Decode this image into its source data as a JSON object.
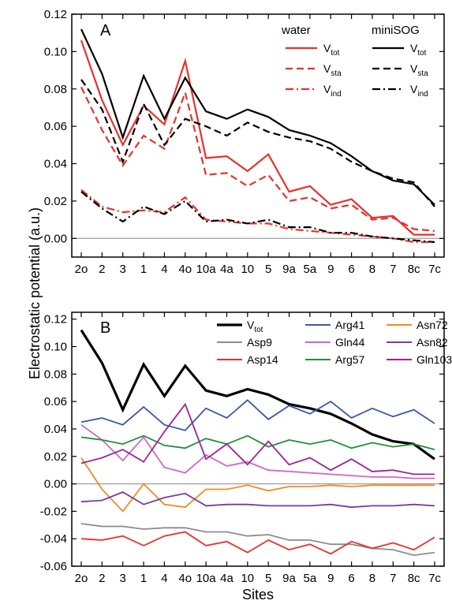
{
  "figure": {
    "ylabel": "Electrostatic potential (a.u.)",
    "xlabel": "Sites",
    "categories": [
      "2o",
      "2",
      "3",
      "1",
      "4",
      "4o",
      "10a",
      "4a",
      "10",
      "5",
      "9a",
      "5a",
      "9",
      "6",
      "8",
      "7",
      "8c",
      "7c"
    ]
  },
  "chart_data": [
    {
      "type": "line",
      "panel": "A",
      "ylim": [
        -0.01,
        0.12
      ],
      "yticks": [
        0.0,
        0.02,
        0.04,
        0.06,
        0.08,
        0.1,
        0.12
      ],
      "ytick_labels": [
        "0.00",
        "0.02",
        "0.04",
        "0.06",
        "0.08",
        "0.10",
        "0.12"
      ],
      "zero_line": true,
      "legend": {
        "groups": [
          {
            "title": "water",
            "color": "#e8312b"
          },
          {
            "title": "miniSOG",
            "color": "#000000"
          }
        ],
        "entries": [
          {
            "base": "V",
            "sub": "tot",
            "dash": "solid"
          },
          {
            "base": "V",
            "sub": "sta",
            "dash": "dash"
          },
          {
            "base": "V",
            "sub": "ind",
            "dash": "dashdot"
          }
        ]
      },
      "series": [
        {
          "key": "water_tot",
          "color": "#e8312b",
          "dash": "solid",
          "width": 2.2,
          "values": [
            0.106,
            0.074,
            0.05,
            0.071,
            0.061,
            0.095,
            0.043,
            0.044,
            0.036,
            0.045,
            0.025,
            0.028,
            0.018,
            0.021,
            0.011,
            0.012,
            0.002,
            0.002
          ]
        },
        {
          "key": "water_sta",
          "color": "#e8312b",
          "dash": "dash",
          "width": 2.2,
          "values": [
            0.081,
            0.058,
            0.039,
            0.055,
            0.048,
            0.078,
            0.034,
            0.035,
            0.028,
            0.034,
            0.02,
            0.022,
            0.016,
            0.018,
            0.01,
            0.011,
            0.005,
            0.004
          ]
        },
        {
          "key": "water_ind",
          "color": "#e8312b",
          "dash": "dashdot",
          "width": 2.2,
          "values": [
            0.026,
            0.017,
            0.014,
            0.015,
            0.014,
            0.022,
            0.01,
            0.009,
            0.008,
            0.008,
            0.005,
            0.004,
            0.003,
            0.002,
            0.001,
            0.0,
            -0.002,
            -0.002
          ]
        },
        {
          "key": "minisog_tot",
          "color": "#000000",
          "dash": "solid",
          "width": 2.2,
          "values": [
            0.112,
            0.088,
            0.054,
            0.087,
            0.064,
            0.086,
            0.068,
            0.064,
            0.069,
            0.065,
            0.058,
            0.055,
            0.051,
            0.044,
            0.036,
            0.031,
            0.029,
            0.018
          ]
        },
        {
          "key": "minisog_sta",
          "color": "#000000",
          "dash": "dash",
          "width": 2.2,
          "values": [
            0.085,
            0.069,
            0.041,
            0.072,
            0.05,
            0.064,
            0.06,
            0.055,
            0.062,
            0.057,
            0.054,
            0.052,
            0.048,
            0.041,
            0.036,
            0.032,
            0.03,
            0.017
          ]
        },
        {
          "key": "minisog_ind",
          "color": "#000000",
          "dash": "dashdot",
          "width": 2.2,
          "values": [
            0.025,
            0.016,
            0.009,
            0.017,
            0.013,
            0.02,
            0.009,
            0.01,
            0.008,
            0.01,
            0.006,
            0.006,
            0.003,
            0.003,
            0.001,
            0.0,
            -0.001,
            -0.002
          ]
        }
      ]
    },
    {
      "type": "line",
      "panel": "B",
      "ylim": [
        -0.06,
        0.125
      ],
      "yticks": [
        -0.06,
        -0.04,
        -0.02,
        0.0,
        0.02,
        0.04,
        0.06,
        0.08,
        0.1,
        0.12
      ],
      "ytick_labels": [
        "-0.06",
        "-0.04",
        "-0.02",
        "0.00",
        "0.02",
        "0.04",
        "0.06",
        "0.08",
        "0.10",
        "0.12"
      ],
      "zero_line": true,
      "series": [
        {
          "name": "V",
          "sub": "tot",
          "color": "#000000",
          "width": 3.2,
          "values": [
            0.112,
            0.088,
            0.054,
            0.087,
            0.064,
            0.086,
            0.068,
            0.064,
            0.069,
            0.065,
            0.058,
            0.055,
            0.051,
            0.044,
            0.036,
            0.031,
            0.029,
            0.018
          ]
        },
        {
          "name": "Asp9",
          "color": "#8c8c8c",
          "width": 1.8,
          "values": [
            -0.029,
            -0.031,
            -0.031,
            -0.033,
            -0.032,
            -0.032,
            -0.035,
            -0.035,
            -0.038,
            -0.037,
            -0.041,
            -0.041,
            -0.044,
            -0.044,
            -0.047,
            -0.048,
            -0.052,
            -0.05
          ]
        },
        {
          "name": "Asp14",
          "color": "#e8312b",
          "width": 1.8,
          "values": [
            -0.04,
            -0.041,
            -0.038,
            -0.045,
            -0.038,
            -0.035,
            -0.045,
            -0.042,
            -0.05,
            -0.041,
            -0.048,
            -0.044,
            -0.051,
            -0.042,
            -0.047,
            -0.043,
            -0.048,
            -0.039
          ]
        },
        {
          "name": "Arg41",
          "color": "#3a57a8",
          "width": 1.8,
          "values": [
            0.045,
            0.048,
            0.043,
            0.056,
            0.043,
            0.039,
            0.055,
            0.048,
            0.061,
            0.047,
            0.057,
            0.051,
            0.06,
            0.048,
            0.055,
            0.049,
            0.054,
            0.044
          ]
        },
        {
          "name": "Gln44",
          "color": "#cf66c6",
          "width": 1.8,
          "values": [
            0.043,
            0.032,
            0.017,
            0.034,
            0.012,
            0.008,
            0.021,
            0.013,
            0.016,
            0.01,
            0.009,
            0.008,
            0.007,
            0.006,
            0.005,
            0.005,
            0.004,
            0.004
          ]
        },
        {
          "name": "Arg57",
          "color": "#1f8f3a",
          "width": 1.8,
          "values": [
            0.034,
            0.032,
            0.029,
            0.035,
            0.028,
            0.026,
            0.033,
            0.029,
            0.035,
            0.027,
            0.032,
            0.029,
            0.032,
            0.026,
            0.03,
            0.027,
            0.029,
            0.025
          ]
        },
        {
          "name": "Asn72",
          "color": "#f08c1e",
          "width": 1.8,
          "values": [
            0.019,
            -0.004,
            -0.02,
            0.0,
            -0.015,
            -0.017,
            -0.004,
            -0.004,
            -0.001,
            -0.005,
            -0.002,
            -0.002,
            -0.001,
            -0.002,
            -0.001,
            -0.001,
            -0.001,
            -0.001
          ]
        },
        {
          "name": "Asn82",
          "color": "#7a3b9e",
          "width": 1.8,
          "values": [
            -0.013,
            -0.012,
            -0.006,
            -0.015,
            -0.01,
            -0.007,
            -0.016,
            -0.015,
            -0.015,
            -0.016,
            -0.016,
            -0.016,
            -0.015,
            -0.017,
            -0.016,
            -0.016,
            -0.015,
            -0.016
          ]
        },
        {
          "name": "Gln103",
          "color": "#a0219b",
          "width": 1.8,
          "values": [
            0.015,
            0.019,
            0.025,
            0.016,
            0.038,
            0.058,
            0.018,
            0.029,
            0.014,
            0.031,
            0.014,
            0.019,
            0.01,
            0.018,
            0.009,
            0.01,
            0.007,
            0.007
          ]
        }
      ],
      "legend_order": [
        "V",
        "Arg41",
        "Asn72",
        "Asp9",
        "Gln44",
        "Asn82",
        "Asp14",
        "Arg57",
        "Gln103"
      ]
    }
  ]
}
